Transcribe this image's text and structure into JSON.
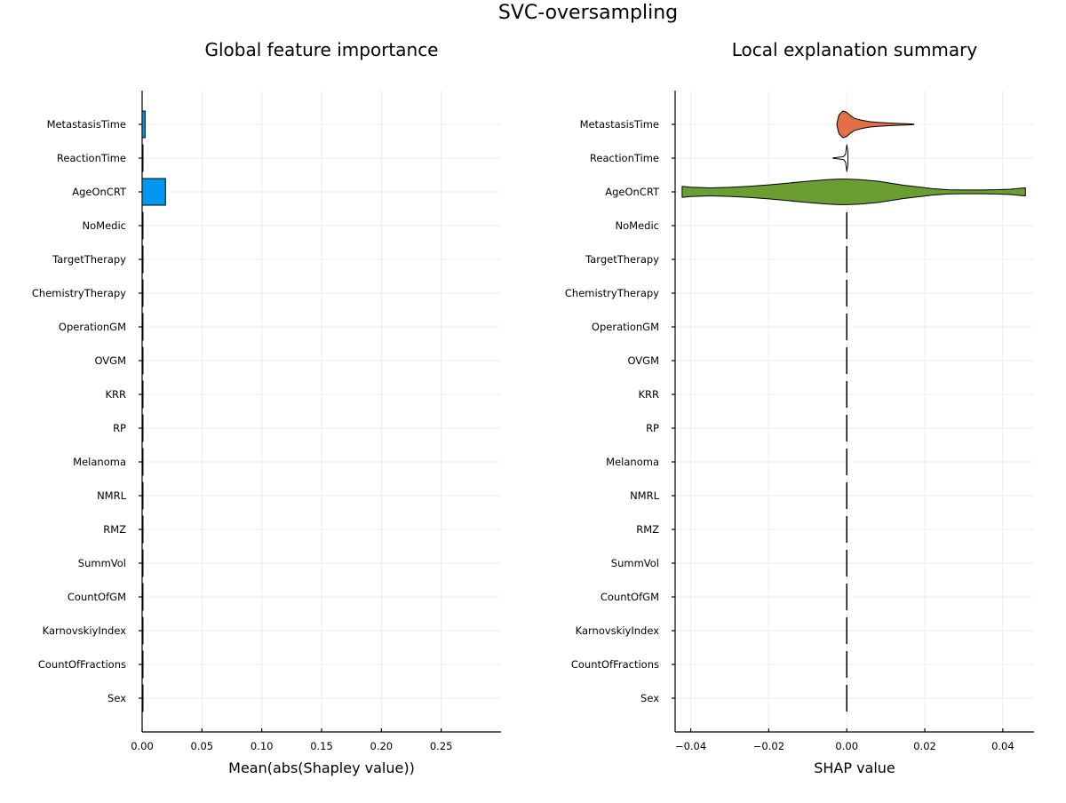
{
  "title": "SVC-oversampling",
  "chart_data": [
    {
      "type": "bar",
      "orientation": "horizontal",
      "title": "Global feature importance",
      "xlabel": "Mean(abs(Shapley value))",
      "ylabel": "",
      "xlim": [
        0.0,
        0.3
      ],
      "xticks": [
        0.0,
        0.05,
        0.1,
        0.15,
        0.2,
        0.25
      ],
      "xtick_labels": [
        "0.00",
        "0.05",
        "0.10",
        "0.15",
        "0.20",
        "0.25"
      ],
      "grid": true,
      "color": "#0097f0",
      "categories": [
        "MetastasisTime",
        "ReactionTime",
        "AgeOnCRT",
        "NoMedic",
        "TargetTherapy",
        "ChemistryTherapy",
        "OperationGM",
        "OVGM",
        "KRR",
        "RP",
        "Melanoma",
        "NMRL",
        "RMZ",
        "SummVol",
        "CountOfGM",
        "KarnovskiyIndex",
        "CountOfFractions",
        "Sex"
      ],
      "values": [
        0.0025,
        0.0004,
        0.0195,
        0,
        0,
        0,
        0,
        0,
        0,
        0,
        0,
        0,
        0,
        0,
        0,
        0,
        0,
        0
      ]
    },
    {
      "type": "violin",
      "orientation": "horizontal",
      "title": "Local explanation summary",
      "xlabel": "SHAP value",
      "ylabel": "",
      "xlim": [
        -0.044,
        0.048
      ],
      "xticks": [
        -0.04,
        -0.02,
        0.0,
        0.02,
        0.04
      ],
      "xtick_labels": [
        "−0.04",
        "−0.02",
        "0.00",
        "0.02",
        "0.04"
      ],
      "grid": true,
      "categories": [
        "MetastasisTime",
        "ReactionTime",
        "AgeOnCRT",
        "NoMedic",
        "TargetTherapy",
        "ChemistryTherapy",
        "OperationGM",
        "OVGM",
        "KRR",
        "RP",
        "Melanoma",
        "NMRL",
        "RMZ",
        "SummVol",
        "CountOfGM",
        "KarnovskiyIndex",
        "CountOfFractions",
        "Sex"
      ],
      "series": [
        {
          "category": "MetastasisTime",
          "color": "#e26f46",
          "min": -0.0025,
          "max": 0.0172,
          "profile": [
            [
              -0.0025,
              0.1
            ],
            [
              -0.002,
              0.7
            ],
            [
              -0.001,
              1.0
            ],
            [
              0.0,
              0.9
            ],
            [
              0.001,
              0.65
            ],
            [
              0.002,
              0.45
            ],
            [
              0.004,
              0.3
            ],
            [
              0.006,
              0.2
            ],
            [
              0.008,
              0.15
            ],
            [
              0.01,
              0.12
            ],
            [
              0.012,
              0.09
            ],
            [
              0.014,
              0.06
            ],
            [
              0.016,
              0.04
            ],
            [
              0.0172,
              0.02
            ]
          ]
        },
        {
          "category": "ReactionTime",
          "color": "#ffffff",
          "min": -0.0035,
          "max": 0.0003,
          "profile": [
            [
              -0.0035,
              0.02
            ],
            [
              -0.0025,
              0.05
            ],
            [
              -0.0015,
              0.08
            ],
            [
              -0.0008,
              0.12
            ],
            [
              -0.0003,
              0.3
            ],
            [
              0.0,
              1.0
            ],
            [
              0.0003,
              0.5
            ]
          ]
        },
        {
          "category": "AgeOnCRT",
          "color": "#6b9e32",
          "min": -0.0422,
          "max": 0.0458,
          "profile": [
            [
              -0.0422,
              0.42
            ],
            [
              -0.04,
              0.35
            ],
            [
              -0.035,
              0.3
            ],
            [
              -0.03,
              0.34
            ],
            [
              -0.025,
              0.42
            ],
            [
              -0.02,
              0.53
            ],
            [
              -0.015,
              0.66
            ],
            [
              -0.01,
              0.8
            ],
            [
              -0.005,
              0.92
            ],
            [
              -0.002,
              0.96
            ],
            [
              0.0,
              0.96
            ],
            [
              0.003,
              0.93
            ],
            [
              0.008,
              0.8
            ],
            [
              0.012,
              0.62
            ],
            [
              0.015,
              0.48
            ],
            [
              0.018,
              0.38
            ],
            [
              0.022,
              0.24
            ],
            [
              0.026,
              0.16
            ],
            [
              0.03,
              0.14
            ],
            [
              0.034,
              0.14
            ],
            [
              0.038,
              0.16
            ],
            [
              0.042,
              0.2
            ],
            [
              0.045,
              0.28
            ],
            [
              0.0458,
              0.3
            ]
          ]
        },
        {
          "category": "NoMedic",
          "color": "#000000",
          "min": 0,
          "max": 0
        },
        {
          "category": "TargetTherapy",
          "color": "#000000",
          "min": 0,
          "max": 0
        },
        {
          "category": "ChemistryTherapy",
          "color": "#000000",
          "min": 0,
          "max": 0
        },
        {
          "category": "OperationGM",
          "color": "#000000",
          "min": 0,
          "max": 0
        },
        {
          "category": "OVGM",
          "color": "#000000",
          "min": 0,
          "max": 0
        },
        {
          "category": "KRR",
          "color": "#000000",
          "min": 0,
          "max": 0
        },
        {
          "category": "RP",
          "color": "#000000",
          "min": 0,
          "max": 0
        },
        {
          "category": "Melanoma",
          "color": "#000000",
          "min": 0,
          "max": 0
        },
        {
          "category": "NMRL",
          "color": "#000000",
          "min": 0,
          "max": 0
        },
        {
          "category": "RMZ",
          "color": "#000000",
          "min": 0,
          "max": 0
        },
        {
          "category": "SummVol",
          "color": "#000000",
          "min": 0,
          "max": 0
        },
        {
          "category": "CountOfGM",
          "color": "#000000",
          "min": 0,
          "max": 0
        },
        {
          "category": "KarnovskiyIndex",
          "color": "#000000",
          "min": 0,
          "max": 0
        },
        {
          "category": "CountOfFractions",
          "color": "#000000",
          "min": 0,
          "max": 0
        },
        {
          "category": "Sex",
          "color": "#000000",
          "min": 0,
          "max": 0
        }
      ]
    }
  ]
}
